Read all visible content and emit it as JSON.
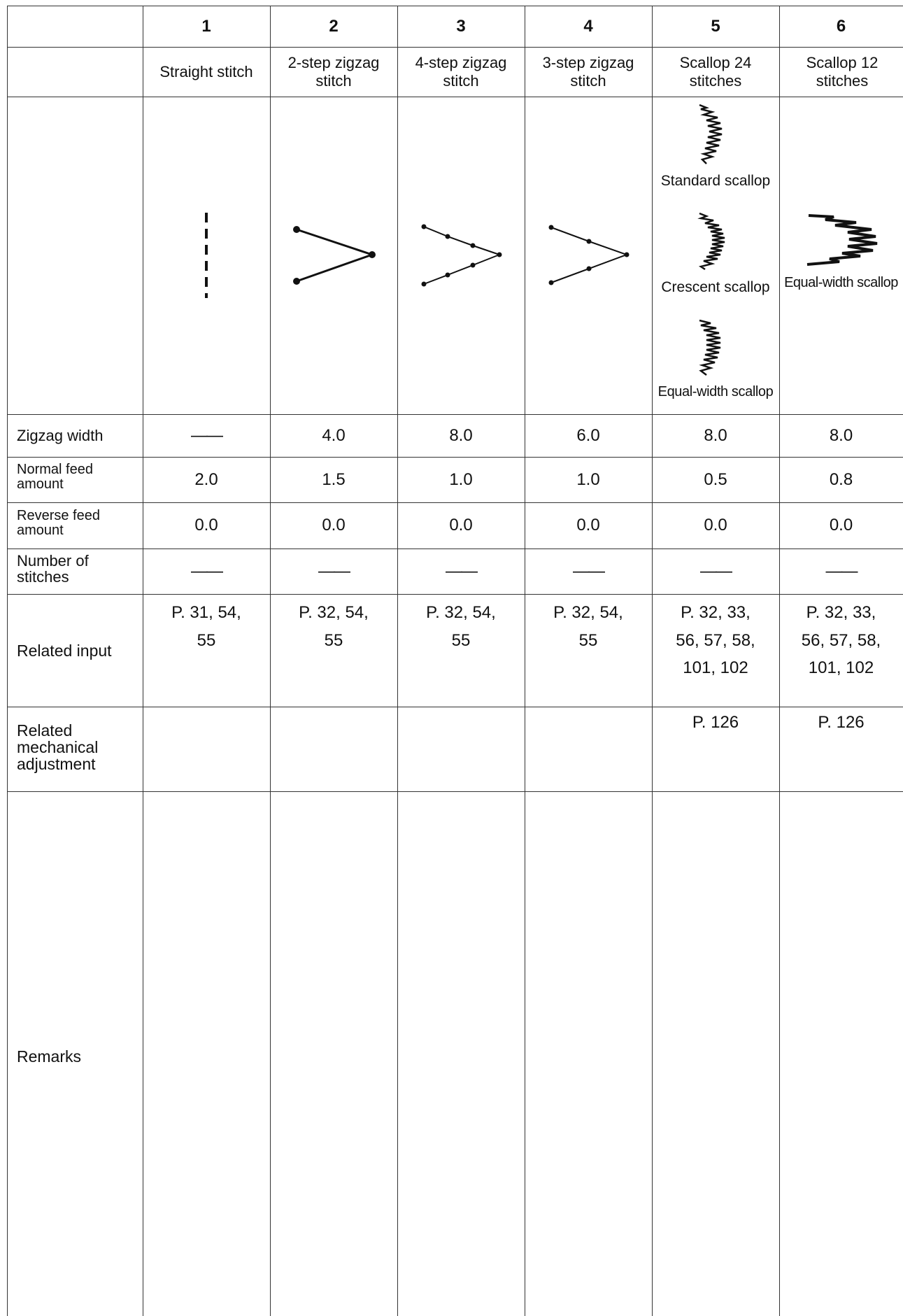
{
  "columns": [
    {
      "number": "1",
      "name": "Straight stitch",
      "zigzag_width": "——",
      "normal_feed": "2.0",
      "reverse_feed": "0.0",
      "stitches": "——",
      "related_input": [
        "P. 31, 54,",
        "55"
      ],
      "mechanical": ""
    },
    {
      "number": "2",
      "name": "2-step zigzag stitch",
      "zigzag_width": "4.0",
      "normal_feed": "1.5",
      "reverse_feed": "0.0",
      "stitches": "——",
      "related_input": [
        "P. 32, 54,",
        "55"
      ],
      "mechanical": ""
    },
    {
      "number": "3",
      "name": "4-step zigzag stitch",
      "zigzag_width": "8.0",
      "normal_feed": "1.0",
      "reverse_feed": "0.0",
      "stitches": "——",
      "related_input": [
        "P. 32, 54,",
        "55"
      ],
      "mechanical": ""
    },
    {
      "number": "4",
      "name": "3-step zigzag stitch",
      "zigzag_width": "6.0",
      "normal_feed": "1.0",
      "reverse_feed": "0.0",
      "stitches": "——",
      "related_input": [
        "P. 32, 54,",
        "55"
      ],
      "mechanical": ""
    },
    {
      "number": "5",
      "name": "Scallop 24 stitches",
      "zigzag_width": "8.0",
      "normal_feed": "0.5",
      "reverse_feed": "0.0",
      "stitches": "——",
      "related_input": [
        "P. 32, 33,",
        "56, 57, 58,",
        "101, 102"
      ],
      "mechanical": "P. 126"
    },
    {
      "number": "6",
      "name": "Scallop 12 stitches",
      "zigzag_width": "8.0",
      "normal_feed": "0.8",
      "reverse_feed": "0.0",
      "stitches": "——",
      "related_input": [
        "P. 32, 33,",
        "56, 57, 58,",
        "101, 102"
      ],
      "mechanical": "P. 126"
    }
  ],
  "row_labels": {
    "zigzag_width": "Zigzag width",
    "normal_feed": [
      "Normal feed",
      "amount"
    ],
    "reverse_feed": [
      "Reverse feed",
      "amount"
    ],
    "stitches": [
      "Number of",
      "stitches"
    ],
    "related_input": "Related input",
    "mechanical": [
      "Related",
      "mechanical",
      "adjustment"
    ],
    "remarks": "Remarks"
  },
  "captions": {
    "standard": "Standard scallop",
    "crescent": "Crescent scallop",
    "equal_width_col5": "Equal-width scallop",
    "equal_width_col6": "Equal-width scallop"
  },
  "pattern_icons": [
    "straight-stitch-icon",
    "two-step-zigzag-icon",
    "four-step-zigzag-icon",
    "three-step-zigzag-icon",
    "scallop-icon"
  ],
  "colors": {
    "line": "#333333",
    "text": "#111111"
  }
}
